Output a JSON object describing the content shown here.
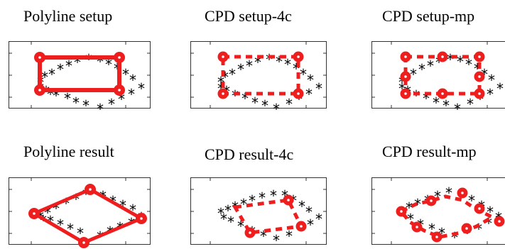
{
  "figure": {
    "accent_color": "#ef1e1e",
    "point_color": "#000000",
    "point_symbol": "*",
    "panels": [
      {
        "id": "polyline-setup",
        "title": "Polyline setup",
        "line_style": "solid"
      },
      {
        "id": "cpd-setup-4c",
        "title": "CPD setup-4c",
        "line_style": "dashed"
      },
      {
        "id": "cpd-setup-mp",
        "title": "CPD setup-mp",
        "line_style": "dashed"
      },
      {
        "id": "polyline-result",
        "title": "Polyline result",
        "line_style": "solid"
      },
      {
        "id": "cpd-result-4c",
        "title": "CPD result-4c",
        "line_style": "dashed"
      },
      {
        "id": "cpd-result-mp",
        "title": "CPD result-mp",
        "line_style": "dashed"
      }
    ]
  }
}
